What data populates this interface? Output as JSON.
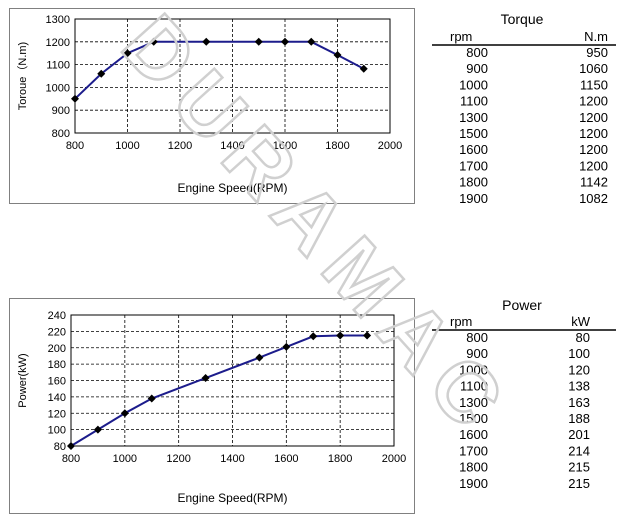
{
  "watermark": "DURAMAC",
  "colors": {
    "line": "#1c1c8c",
    "marker": "#000000",
    "grid": "#000000",
    "frame": "#808080",
    "watermark": "#d0d0d0"
  },
  "chart_data": [
    {
      "type": "line",
      "xlabel": "Engine Speed(RPM)",
      "ylabel": "Toroue（N.m)",
      "xlim": [
        800,
        2000
      ],
      "ylim": [
        800,
        1300
      ],
      "xticks": [
        "800",
        "1000",
        "1200",
        "1400",
        "1600",
        "1800",
        "2000"
      ],
      "yticks": [
        "800",
        "900",
        "1000",
        "1100",
        "1200",
        "1300"
      ],
      "grid": true,
      "series": [
        {
          "x": [
            800,
            900,
            1000,
            1100,
            1300,
            1500,
            1600,
            1700,
            1800,
            1900
          ],
          "values": [
            950,
            1060,
            1150,
            1200,
            1200,
            1200,
            1200,
            1200,
            1142,
            1082
          ]
        }
      ]
    },
    {
      "type": "line",
      "xlabel": "Engine Speed(RPM)",
      "ylabel": "Power(kW)",
      "xlim": [
        800,
        2000
      ],
      "ylim": [
        80,
        240
      ],
      "xticks": [
        "800",
        "1000",
        "1200",
        "1400",
        "1600",
        "1800",
        "2000"
      ],
      "yticks": [
        "80",
        "100",
        "120",
        "140",
        "160",
        "180",
        "200",
        "220",
        "240"
      ],
      "grid": true,
      "series": [
        {
          "x": [
            800,
            900,
            1000,
            1100,
            1300,
            1500,
            1600,
            1700,
            1800,
            1900
          ],
          "values": [
            80,
            100,
            120,
            138,
            163,
            188,
            201,
            214,
            215,
            215
          ]
        }
      ]
    },
    {
      "type": "table",
      "title": "Torque",
      "columns": [
        "rpm",
        "N.m"
      ],
      "rows": [
        [
          "800",
          "950"
        ],
        [
          "900",
          "1060"
        ],
        [
          "1000",
          "1150"
        ],
        [
          "1100",
          "1200"
        ],
        [
          "1300",
          "1200"
        ],
        [
          "1500",
          "1200"
        ],
        [
          "1600",
          "1200"
        ],
        [
          "1700",
          "1200"
        ],
        [
          "1800",
          "1142"
        ],
        [
          "1900",
          "1082"
        ]
      ]
    },
    {
      "type": "table",
      "title": "Power",
      "columns": [
        "rpm",
        "kW"
      ],
      "rows": [
        [
          "800",
          "80"
        ],
        [
          "900",
          "100"
        ],
        [
          "1000",
          "120"
        ],
        [
          "1100",
          "138"
        ],
        [
          "1300",
          "163"
        ],
        [
          "1500",
          "188"
        ],
        [
          "1600",
          "201"
        ],
        [
          "1700",
          "214"
        ],
        [
          "1800",
          "215"
        ],
        [
          "1900",
          "215"
        ]
      ]
    }
  ]
}
